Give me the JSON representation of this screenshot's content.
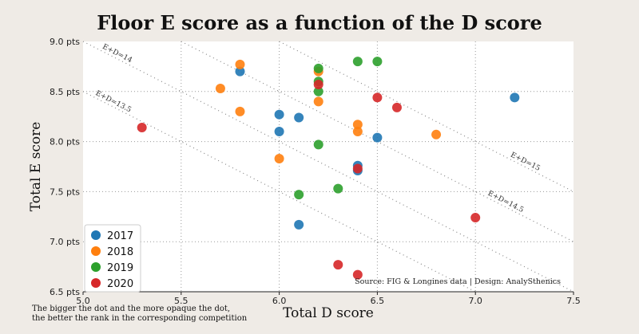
{
  "chart_data": {
    "type": "scatter",
    "title": "Floor E score as a function of the D score",
    "xlabel": "Total D score",
    "ylabel": "Total E score",
    "xlim": [
      5.0,
      7.5
    ],
    "ylim": [
      6.5,
      9.0
    ],
    "x_ticks": [
      "5.0",
      "5.5",
      "6.0",
      "6.5",
      "7.0",
      "7.5"
    ],
    "y_ticks": [
      "6.5 pts",
      "7.0 pts",
      "7.5 pts",
      "8.0 pts",
      "8.5 pts",
      "9.0 pts"
    ],
    "grid": true,
    "legend_position": "bottom-left",
    "series": [
      {
        "name": "2017",
        "color": "#1f77b4",
        "points": [
          [
            5.8,
            8.7
          ],
          [
            6.0,
            8.27
          ],
          [
            6.0,
            8.1
          ],
          [
            6.1,
            8.24
          ],
          [
            6.1,
            7.17
          ],
          [
            6.4,
            7.76
          ],
          [
            6.4,
            7.71
          ],
          [
            6.5,
            8.04
          ],
          [
            7.2,
            8.44
          ]
        ]
      },
      {
        "name": "2018",
        "color": "#ff7f0e",
        "points": [
          [
            5.7,
            8.53
          ],
          [
            5.8,
            8.77
          ],
          [
            5.8,
            8.3
          ],
          [
            6.0,
            7.83
          ],
          [
            6.2,
            8.7
          ],
          [
            6.2,
            8.4
          ],
          [
            6.4,
            8.17
          ],
          [
            6.4,
            8.1
          ],
          [
            6.8,
            8.07
          ]
        ]
      },
      {
        "name": "2019",
        "color": "#2ca02c",
        "points": [
          [
            6.1,
            7.47
          ],
          [
            6.2,
            8.73
          ],
          [
            6.2,
            8.6
          ],
          [
            6.2,
            8.5
          ],
          [
            6.2,
            7.97
          ],
          [
            6.3,
            7.53
          ],
          [
            6.4,
            8.8
          ],
          [
            6.5,
            8.8
          ]
        ]
      },
      {
        "name": "2020",
        "color": "#d62728",
        "points": [
          [
            5.3,
            8.14
          ],
          [
            6.2,
            8.57
          ],
          [
            6.3,
            6.77
          ],
          [
            6.4,
            7.73
          ],
          [
            6.4,
            6.67
          ],
          [
            6.5,
            8.44
          ],
          [
            6.6,
            8.34
          ],
          [
            7.0,
            7.24
          ]
        ]
      }
    ],
    "reference_lines": [
      {
        "label": "E+D=13.5",
        "sum": 13.5
      },
      {
        "label": "E+D=14",
        "sum": 14
      },
      {
        "label": "E+D=14.5",
        "sum": 14.5
      },
      {
        "label": "E+D=15",
        "sum": 15
      }
    ],
    "source": "Source: FIG & Longines data  |  Design: AnalySthenics",
    "note_line1": "The bigger the dot and the more opaque the dot,",
    "note_line2": "the better the rank in the corresponding competition"
  }
}
